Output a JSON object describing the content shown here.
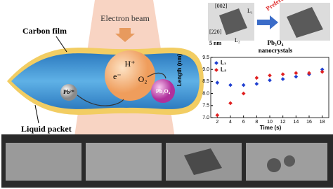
{
  "diagram": {
    "beam": "Electron beam",
    "carbon_film": "Carbon film",
    "liquid_packet": "Liquid packet",
    "ion": "Pb²⁺",
    "electron": "e⁻",
    "proton": "H⁺",
    "oxygen": "O₂",
    "product": "Pb₃O₄",
    "tem": {
      "zone_a": "[002]",
      "zone_b": "[220]",
      "l1": "L₁",
      "l2": "L₂",
      "scale": "5 nm",
      "arrow": "Preferential",
      "caption": [
        "Pb₃O₄",
        "nanocrystals"
      ]
    }
  },
  "chart_data": {
    "type": "scatter",
    "xlabel": "Time (s)",
    "ylabel": "Length (nm)",
    "x": [
      2,
      4,
      6,
      8,
      10,
      12,
      14,
      16,
      18
    ],
    "series": [
      {
        "name": "L₁",
        "color": "#1f3fd0",
        "values": [
          8.45,
          8.35,
          8.35,
          8.4,
          8.55,
          8.6,
          8.7,
          8.8,
          9.0
        ]
      },
      {
        "name": "L₂",
        "color": "#e02020",
        "values": [
          7.1,
          7.6,
          8.0,
          8.65,
          8.75,
          8.8,
          8.85,
          8.85,
          8.9
        ]
      }
    ],
    "xlim": [
      1,
      19
    ],
    "xticks": [
      2,
      4,
      6,
      8,
      10,
      12,
      14,
      16,
      18
    ],
    "ylim": [
      7.0,
      9.5
    ],
    "yticks": [
      {
        "value": 7.0,
        "label": "7.0"
      },
      {
        "value": 7.5,
        "label": "7.5"
      },
      {
        "value": 8.0,
        "label": "8.0"
      },
      {
        "value": 8.5,
        "label": "8.5"
      },
      {
        "value": 9.0,
        "label": "9.0"
      },
      {
        "value": 9.5,
        "label": "9.5"
      }
    ],
    "legend": "upper left"
  }
}
